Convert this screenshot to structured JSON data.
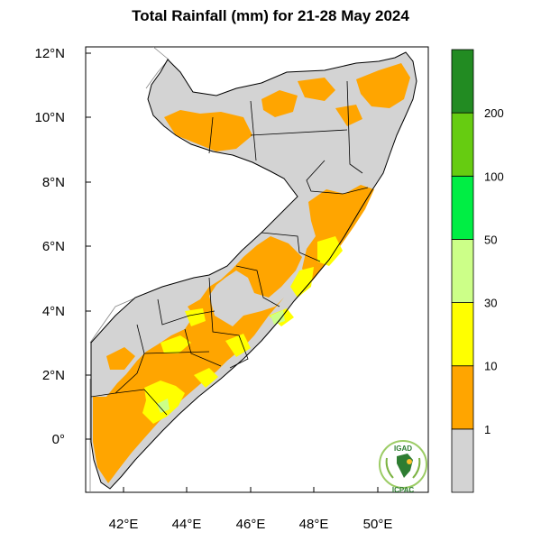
{
  "title": "Total Rainfall (mm) for 21-28 May 2024",
  "map": {
    "region_outline_color": "#000000",
    "no_rain_color": "#d3d3d3",
    "lat_ticks": [
      "12°N",
      "10°N",
      "8°N",
      "6°N",
      "4°N",
      "2°N",
      "0°"
    ],
    "lon_ticks": [
      "42°E",
      "44°E",
      "46°E",
      "48°E",
      "50°E"
    ]
  },
  "legend": {
    "bins": [
      {
        "label": "1",
        "color": "#d3d3d3"
      },
      {
        "label": "10",
        "color": "#ffa500"
      },
      {
        "label": "30",
        "color": "#ffff00"
      },
      {
        "label": "50",
        "color": "#ccff88"
      },
      {
        "label": "100",
        "color": "#00ee44"
      },
      {
        "label": "200",
        "color": "#66cc11"
      },
      {
        "label": "",
        "color": "#228b22"
      }
    ]
  },
  "logo": {
    "top_text": "IGAD",
    "bottom_text": "ICPAC",
    "brand_color": "#2e7d32"
  }
}
